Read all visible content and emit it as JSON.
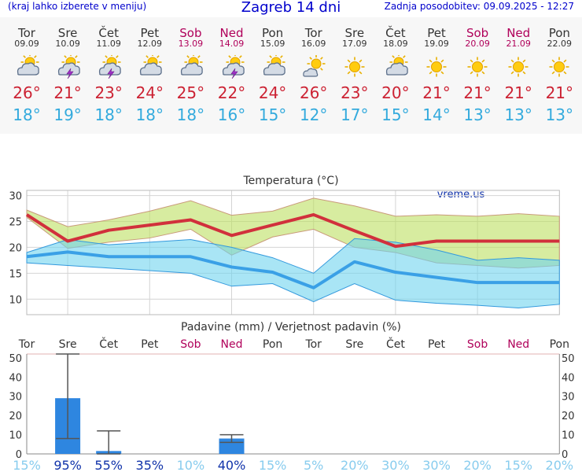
{
  "header": {
    "left": "(kraj lahko izberete v meniju)",
    "title": "Zagreb 14 dni",
    "updated": "Zadnja posodobitev: 09.09.2025 - 12:27"
  },
  "colors": {
    "max_temp": "#cc2233",
    "min_temp": "#33aadd",
    "weekend": "#b0005a",
    "bar": "#2e86e0"
  },
  "days": [
    {
      "name": "Tor",
      "date": "09.09",
      "icon": "partly-cloudy-icon",
      "max": "26°",
      "min": "18°",
      "weekend": false
    },
    {
      "name": "Sre",
      "date": "10.09",
      "icon": "thunderstorm-icon",
      "max": "21°",
      "min": "19°",
      "weekend": false
    },
    {
      "name": "Čet",
      "date": "11.09",
      "icon": "thunderstorm-icon",
      "max": "23°",
      "min": "18°",
      "weekend": false
    },
    {
      "name": "Pet",
      "date": "12.09",
      "icon": "partly-cloudy-icon",
      "max": "24°",
      "min": "18°",
      "weekend": false
    },
    {
      "name": "Sob",
      "date": "13.09",
      "icon": "partly-cloudy-icon",
      "max": "25°",
      "min": "18°",
      "weekend": true
    },
    {
      "name": "Ned",
      "date": "14.09",
      "icon": "thunderstorm-icon",
      "max": "22°",
      "min": "16°",
      "weekend": true
    },
    {
      "name": "Pon",
      "date": "15.09",
      "icon": "partly-cloudy-icon",
      "max": "24°",
      "min": "15°",
      "weekend": false
    },
    {
      "name": "Tor",
      "date": "16.09",
      "icon": "mostly-sunny-icon",
      "max": "26°",
      "min": "12°",
      "weekend": false
    },
    {
      "name": "Sre",
      "date": "17.09",
      "icon": "sun-icon",
      "max": "23°",
      "min": "17°",
      "weekend": false
    },
    {
      "name": "Čet",
      "date": "18.09",
      "icon": "partly-cloudy-icon",
      "max": "20°",
      "min": "15°",
      "weekend": false
    },
    {
      "name": "Pet",
      "date": "19.09",
      "icon": "sun-icon",
      "max": "21°",
      "min": "14°",
      "weekend": false
    },
    {
      "name": "Sob",
      "date": "20.09",
      "icon": "sun-icon",
      "max": "21°",
      "min": "13°",
      "weekend": true
    },
    {
      "name": "Ned",
      "date": "21.09",
      "icon": "sun-icon",
      "max": "21°",
      "min": "13°",
      "weekend": true
    },
    {
      "name": "Pon",
      "date": "22.09",
      "icon": "sun-icon",
      "max": "21°",
      "min": "13°",
      "weekend": false
    }
  ],
  "chart_data": [
    {
      "type": "line",
      "title": "Temperatura (°C)",
      "watermark": "vreme.us",
      "ylim": [
        7,
        31
      ],
      "yticks": [
        10,
        15,
        20,
        25,
        30
      ],
      "grid": true,
      "series": [
        {
          "values": [
            26.3,
            21.2,
            23.3,
            24.3,
            25.3,
            22.3,
            24.3,
            26.3,
            23.2,
            20.2,
            21.2,
            21.2,
            21.2,
            21.2
          ]
        },
        {
          "values": [
            18.2,
            19.1,
            18.2,
            18.2,
            18.2,
            16.2,
            15.2,
            12.2,
            17.2,
            15.2,
            14.2,
            13.2,
            13.2,
            13.2
          ]
        },
        {
          "values": [
            27.2,
            24.0,
            25.3,
            27.0,
            29.0,
            26.2,
            27.0,
            29.5,
            28.0,
            26.0,
            26.3,
            26.0,
            26.5,
            26.0
          ]
        },
        {
          "values": [
            25.8,
            19.8,
            21.0,
            21.8,
            23.5,
            18.5,
            22.0,
            23.5,
            20.0,
            19.0,
            17.0,
            16.5,
            16.0,
            16.5
          ]
        },
        {
          "values": [
            19.0,
            21.5,
            20.5,
            21.0,
            21.5,
            20.0,
            18.0,
            15.0,
            21.7,
            21.0,
            19.5,
            17.5,
            18.0,
            17.5
          ]
        },
        {
          "values": [
            17.0,
            16.5,
            16.0,
            15.5,
            15.0,
            12.5,
            13.0,
            9.5,
            13.0,
            9.8,
            9.2,
            8.8,
            8.3,
            9.0
          ]
        }
      ]
    },
    {
      "type": "bar",
      "title": "Padavine (mm) / Verjetnost padavin (%)",
      "categories": [
        "Tor",
        "Sre",
        "Čet",
        "Pet",
        "Sob",
        "Ned",
        "Pon",
        "Tor",
        "Sre",
        "Čet",
        "Pet",
        "Sob",
        "Ned",
        "Pon"
      ],
      "weekend": [
        false,
        false,
        false,
        false,
        true,
        true,
        false,
        false,
        false,
        false,
        false,
        true,
        true,
        false
      ],
      "values": [
        0,
        29,
        1.5,
        0,
        0,
        8,
        0,
        0,
        0,
        0,
        0,
        0,
        0,
        0
      ],
      "error_low": [
        0,
        8,
        0,
        0,
        0,
        6,
        0,
        0,
        0,
        0,
        0,
        0,
        0,
        0
      ],
      "error_high": [
        0,
        52,
        12,
        0,
        0,
        10,
        0,
        0,
        0,
        0,
        0,
        0,
        0,
        0
      ],
      "probability": [
        "15%",
        "95%",
        "55%",
        "35%",
        "10%",
        "40%",
        "15%",
        "5%",
        "20%",
        "30%",
        "30%",
        "20%",
        "15%",
        "20%"
      ],
      "probability_strong": [
        false,
        true,
        true,
        true,
        false,
        true,
        false,
        false,
        false,
        false,
        false,
        false,
        false,
        false
      ],
      "ylim": [
        0,
        52
      ],
      "yticks": [
        0,
        10,
        20,
        30,
        40,
        50
      ]
    }
  ]
}
